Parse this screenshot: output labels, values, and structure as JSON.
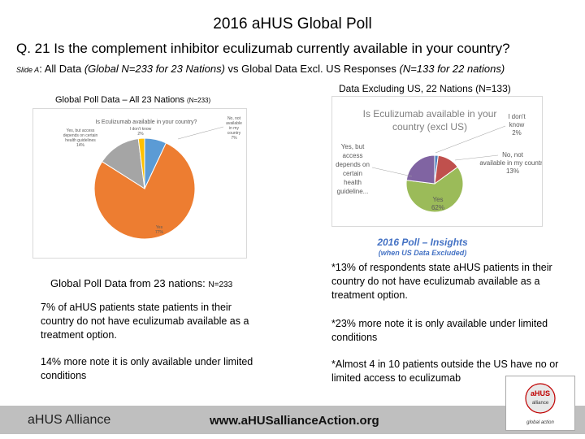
{
  "title": "2016 aHUS Global Poll",
  "question": "Q. 21   Is the complement inhibitor eculizumab currently available in your country?",
  "subtitle": {
    "slide": "Slide A",
    "colon": ":  ",
    "part1": "All Data ",
    "part2": "(Global N=233 for 23 Nations)",
    "part3": "  vs  Global Data Excl. US Responses  ",
    "part4": "(N=133 for 22 nations)"
  },
  "left_chart_heading": "Global Poll Data – All 23 Nations ",
  "left_chart_heading_n": "(N=233)",
  "right_chart_heading": "Data Excluding US, 22 Nations (N=133)",
  "chart_data": [
    {
      "type": "pie",
      "title": "Is Eculizumab available in your country?",
      "slices": [
        {
          "label": "No, not available in my country",
          "value": 7,
          "color": "#5b9bd5"
        },
        {
          "label": "Yes",
          "value": 77,
          "color": "#ed7d31"
        },
        {
          "label": "Yes, but access depends on certain health guidelines",
          "value": 14,
          "color": "#a5a5a5"
        },
        {
          "label": "I don't know",
          "value": 2,
          "color": "#ffc000"
        }
      ]
    },
    {
      "type": "pie",
      "title": "Is Eculizumab available in your country (excl US)",
      "slices": [
        {
          "label": "I don't know",
          "value": 2,
          "color": "#4f81bd"
        },
        {
          "label": "No, not available in my country",
          "value": 13,
          "color": "#c0504d"
        },
        {
          "label": "Yes",
          "value": 62,
          "color": "#9bbb59"
        },
        {
          "label": "Yes, but access depends on certain health guideline...",
          "value": 23,
          "color": "#8064a2"
        }
      ]
    }
  ],
  "left_labels": {
    "no": [
      "No, not",
      "available",
      "in my",
      "country",
      "7%"
    ],
    "yes": [
      "Yes",
      "77%"
    ],
    "yes_but": [
      "Yes, but access",
      "depends on certain",
      "health guidelines",
      "14%"
    ],
    "dont_know": [
      "I don't know",
      "2%"
    ]
  },
  "right_labels": {
    "dont_know": [
      "I don't",
      "know",
      "2%"
    ],
    "no": [
      "No, not",
      "available in my country",
      "13%"
    ],
    "yes": [
      "Yes",
      "62%"
    ],
    "yes_but": [
      "Yes, but",
      "access",
      "depends on",
      "certain",
      "health",
      "guideline..."
    ]
  },
  "insights": {
    "title": "2016 Poll – Insights",
    "sub": "(when US Data Excluded)",
    "p1": "*13% of respondents state aHUS patients in their country do not have eculizumab available as a treatment option.",
    "p2": "*23% more note it is only available under limited conditions",
    "p3": "*Almost 4 in 10 patients outside the US have no or limited access to eculizumab"
  },
  "global": {
    "heading": "Global Poll Data from 23 nations:   ",
    "n": "N=233",
    "p1": "7% of aHUS patients state patients in their country do not have eculizumab available as a treatment option.",
    "p2": "14% more note it is only available under limited conditions"
  },
  "footer": {
    "left": "aHUS Alliance",
    "center": "www.aHUSallianceAction.org"
  },
  "logo": {
    "brand_top": "aHUS",
    "brand_mid": "alliance",
    "brand_bottom": "global action"
  }
}
